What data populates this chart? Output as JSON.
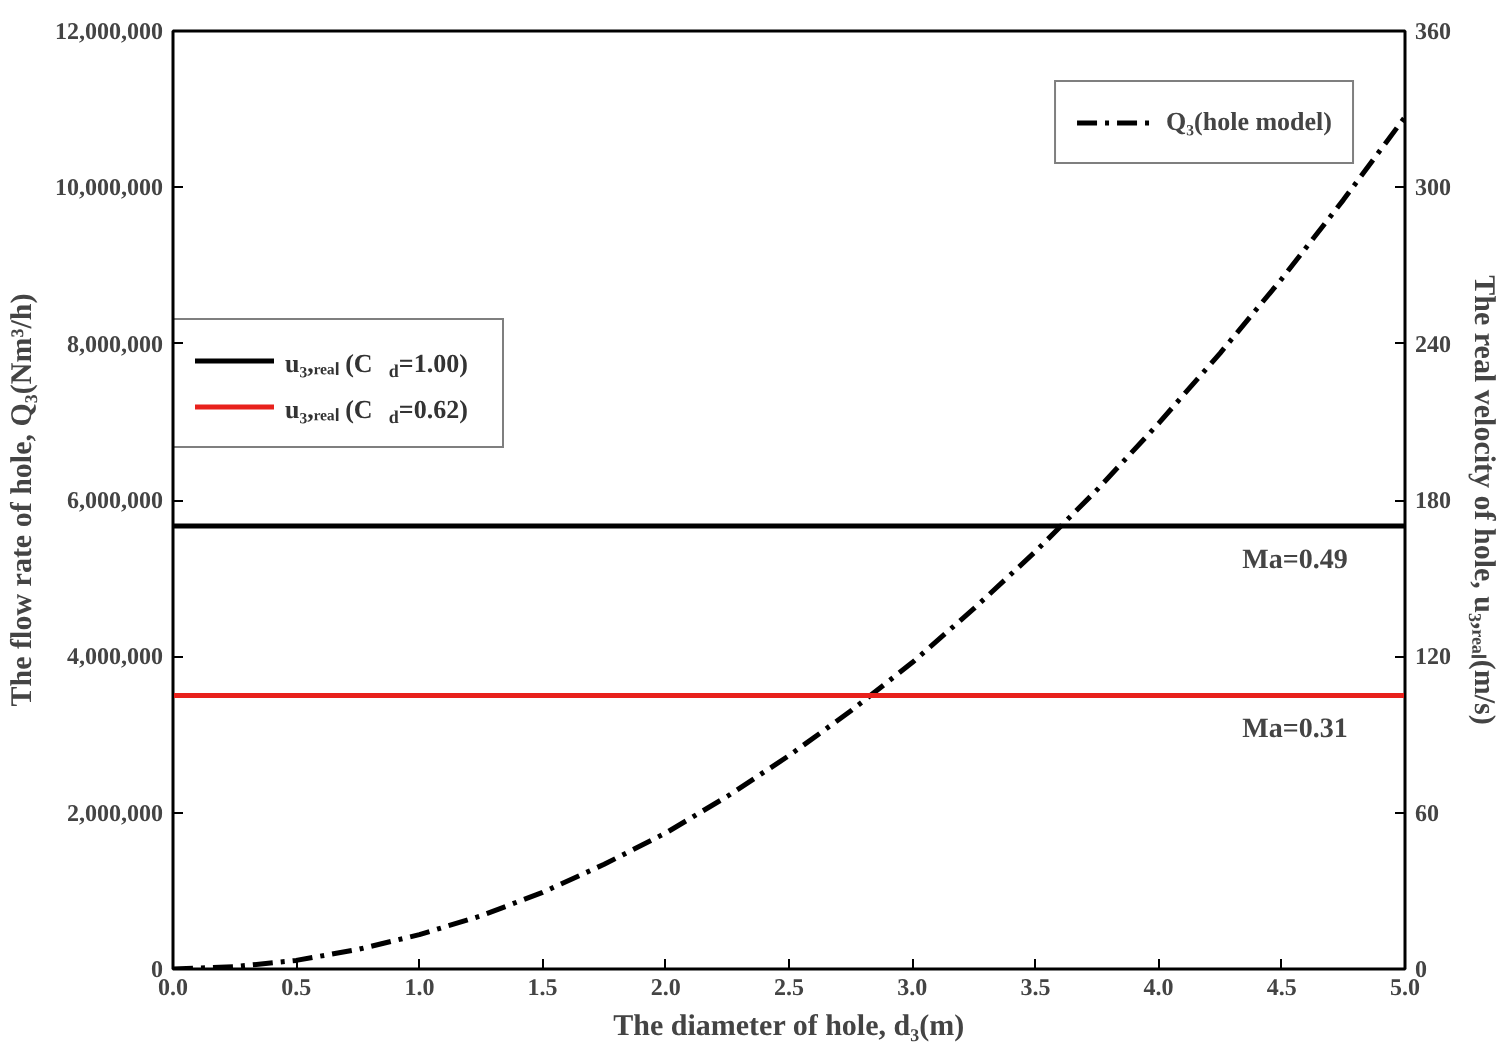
{
  "chart_data": {
    "type": "line",
    "xlabel": "The diameter of hole, d₃(m)",
    "ylabel": "The flow rate of hole, Q₃(Nm³/h)",
    "y2label": "The real velocity of hole, u₃,ᵣₑₐₗ(m/s)",
    "xlim": [
      0,
      5
    ],
    "xticks": [
      {
        "value": 0,
        "label": "0.0"
      },
      0.5,
      {
        "value": 1,
        "label": "1.0"
      },
      1.5,
      {
        "value": 2,
        "label": "2.0"
      },
      2.5,
      {
        "value": 3,
        "label": "3.0"
      },
      3.5,
      {
        "value": 4,
        "label": "4.0"
      },
      4.5,
      {
        "value": 5,
        "label": "5.0"
      }
    ],
    "ylim": [
      0,
      12000000
    ],
    "yticks": [
      0,
      {
        "value": 2000000,
        "label": "2,000,000"
      },
      {
        "value": 4000000,
        "label": "4,000,000"
      },
      {
        "value": 6000000,
        "label": "6,000,000"
      },
      {
        "value": 8000000,
        "label": "8,000,000"
      },
      {
        "value": 10000000,
        "label": "10,000,000"
      },
      {
        "value": 12000000,
        "label": "12,000,000"
      }
    ],
    "y2lim": [
      0,
      360
    ],
    "y2ticks": [
      0,
      60,
      120,
      180,
      240,
      300,
      360
    ],
    "grid": false,
    "legend": "top right",
    "series": [
      {
        "name": "Q₃(hole model)",
        "color": "#000000",
        "line_style": "dashdot",
        "x": [
          0,
          0.25,
          0.5,
          0.75,
          1,
          1.25,
          1.5,
          1.75,
          2,
          2.25,
          2.5,
          2.75,
          3,
          3.25,
          3.5,
          3.75,
          4,
          4.25,
          4.5,
          4.75,
          5
        ],
        "values": [
          0,
          30000,
          110000,
          250000,
          440000,
          680000,
          980000,
          1340000,
          1740000,
          2210000,
          2730000,
          3300000,
          3920000,
          4610000,
          5340000,
          6130000,
          6980000,
          7880000,
          8830000,
          9840000,
          10900000
        ]
      },
      {
        "name": "u₃,ᵣₑₐₗ (C$_{d}$=1.00)",
        "color": "#000000",
        "line_style": "solid",
        "axis": "y2",
        "x": [
          0,
          5
        ],
        "values": [
          170,
          170
        ]
      },
      {
        "name": "u₃,ᵣₑₐₗ (C$_{d}$=0.62)",
        "color": "#e8211c",
        "line_style": "solid",
        "axis": "y2",
        "x": [
          0,
          5
        ],
        "values": [
          105,
          105
        ]
      }
    ],
    "annotations": [
      "Ma=0.49",
      "Ma=0.31"
    ]
  }
}
